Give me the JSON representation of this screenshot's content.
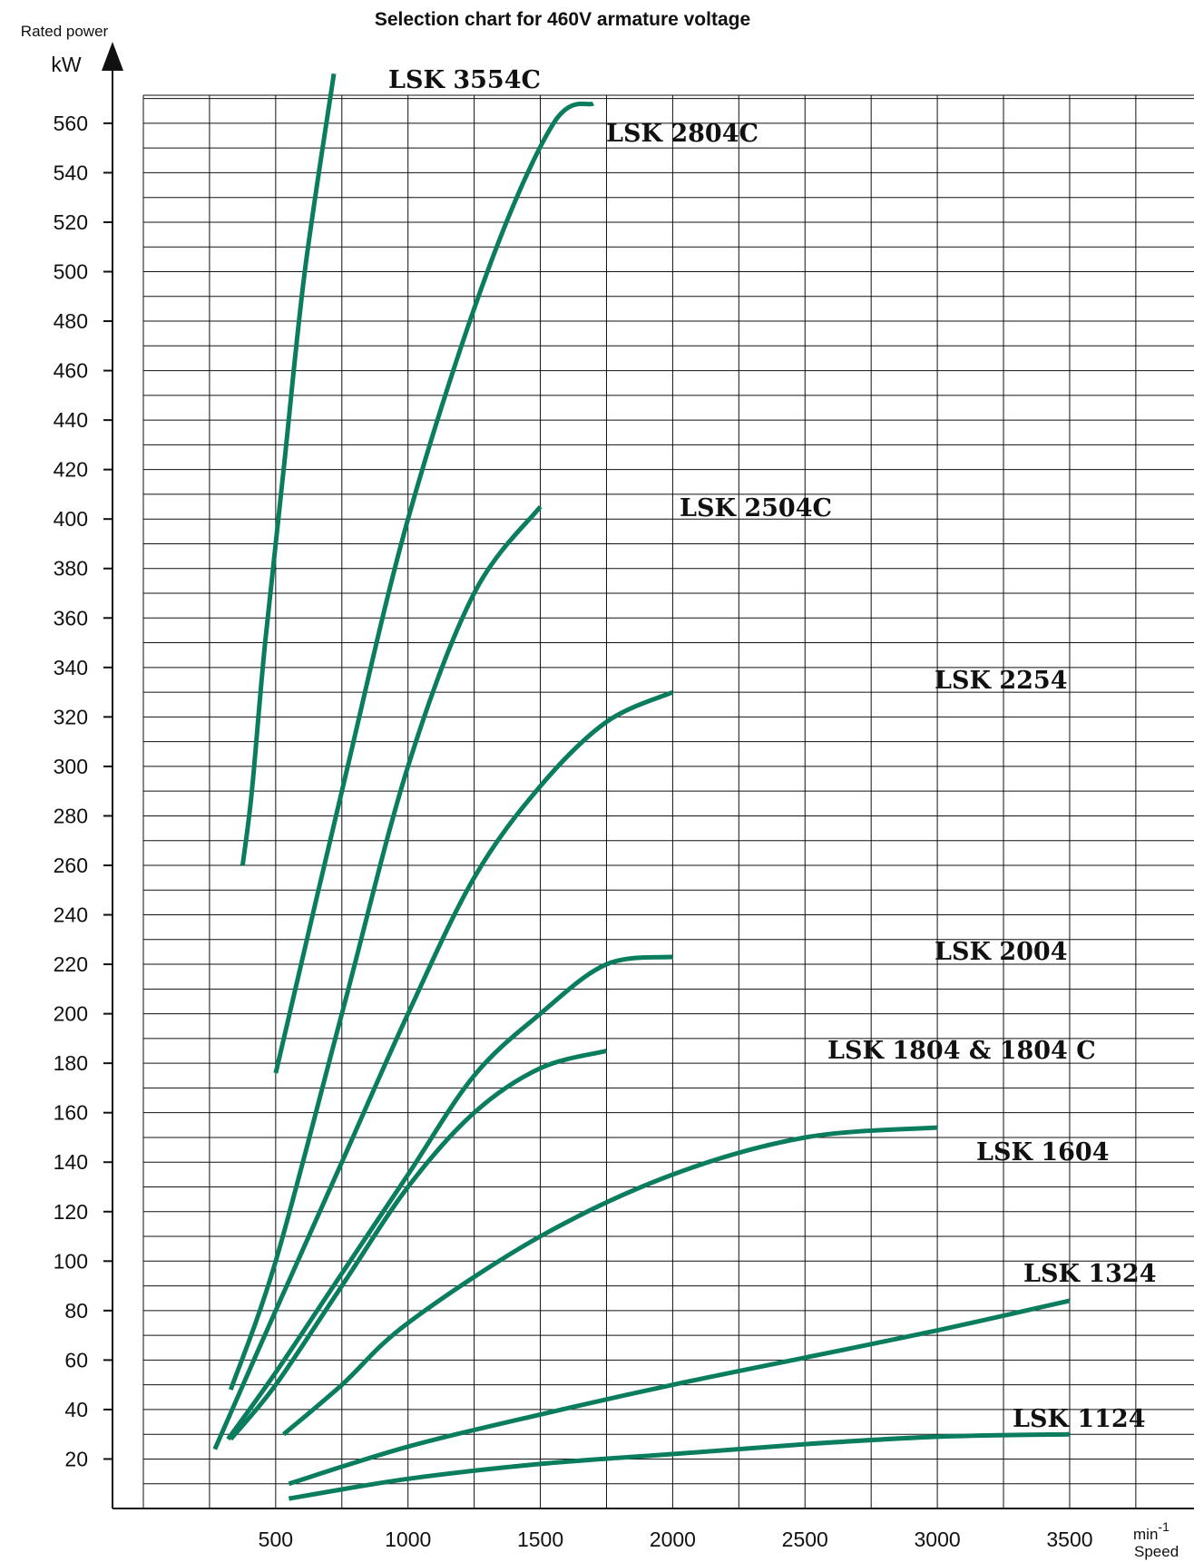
{
  "chart_data": {
    "type": "line",
    "title": "Selection chart for 460V armature voltage",
    "ylabel": "Rated power",
    "yunit": "kW",
    "xunit": "min",
    "xunit_exponent": "-1",
    "xlabel": "Speed",
    "xlim": [
      0,
      3650
    ],
    "ylim": [
      0,
      580
    ],
    "xticks": [
      "500",
      "1000",
      "1500",
      "2000",
      "2500",
      "3000",
      "3500"
    ],
    "yticks": [
      "20",
      "40",
      "60",
      "80",
      "100",
      "120",
      "140",
      "160",
      "180",
      "200",
      "220",
      "240",
      "260",
      "280",
      "300",
      "320",
      "340",
      "360",
      "380",
      "400",
      "420",
      "440",
      "460",
      "480",
      "500",
      "520",
      "540",
      "560"
    ],
    "grid": true,
    "line_color": "#0a7d5f",
    "series": [
      {
        "name": "LSK 3554C",
        "points": [
          [
            375,
            260
          ],
          [
            410,
            290
          ],
          [
            460,
            350
          ],
          [
            530,
            420
          ],
          [
            610,
            500
          ],
          [
            720,
            580
          ]
        ]
      },
      {
        "name": "LSK 2804C",
        "points": [
          [
            500,
            176
          ],
          [
            750,
            290
          ],
          [
            1000,
            400
          ],
          [
            1300,
            500
          ],
          [
            1550,
            560
          ],
          [
            1700,
            568
          ]
        ]
      },
      {
        "name": "LSK 2504C",
        "points": [
          [
            330,
            48
          ],
          [
            500,
            100
          ],
          [
            750,
            200
          ],
          [
            1000,
            300
          ],
          [
            1250,
            370
          ],
          [
            1500,
            405
          ]
        ]
      },
      {
        "name": "LSK 2254",
        "points": [
          [
            270,
            24
          ],
          [
            500,
            80
          ],
          [
            750,
            140
          ],
          [
            1000,
            200
          ],
          [
            1250,
            255
          ],
          [
            1500,
            292
          ],
          [
            1750,
            318
          ],
          [
            2000,
            330
          ]
        ]
      },
      {
        "name": "LSK 2004",
        "points": [
          [
            320,
            28
          ],
          [
            500,
            55
          ],
          [
            750,
            95
          ],
          [
            1000,
            135
          ],
          [
            1250,
            175
          ],
          [
            1500,
            200
          ],
          [
            1750,
            220
          ],
          [
            2000,
            223
          ]
        ]
      },
      {
        "name": "LSK 1804 & 1804 C",
        "points": [
          [
            330,
            28
          ],
          [
            500,
            50
          ],
          [
            750,
            90
          ],
          [
            1000,
            130
          ],
          [
            1250,
            160
          ],
          [
            1500,
            178
          ],
          [
            1750,
            185
          ]
        ]
      },
      {
        "name": "LSK 1604",
        "points": [
          [
            530,
            30
          ],
          [
            750,
            50
          ],
          [
            1000,
            75
          ],
          [
            1500,
            110
          ],
          [
            2000,
            135
          ],
          [
            2500,
            150
          ],
          [
            3000,
            154
          ]
        ]
      },
      {
        "name": "LSK 1324",
        "points": [
          [
            550,
            10
          ],
          [
            1000,
            25
          ],
          [
            1500,
            38
          ],
          [
            2000,
            50
          ],
          [
            2500,
            61
          ],
          [
            3000,
            72
          ],
          [
            3500,
            84
          ]
        ]
      },
      {
        "name": "LSK 1124",
        "points": [
          [
            550,
            4
          ],
          [
            1000,
            12
          ],
          [
            1500,
            18
          ],
          [
            2000,
            22
          ],
          [
            2500,
            26
          ],
          [
            3000,
            29
          ],
          [
            3500,
            30
          ]
        ]
      }
    ]
  }
}
